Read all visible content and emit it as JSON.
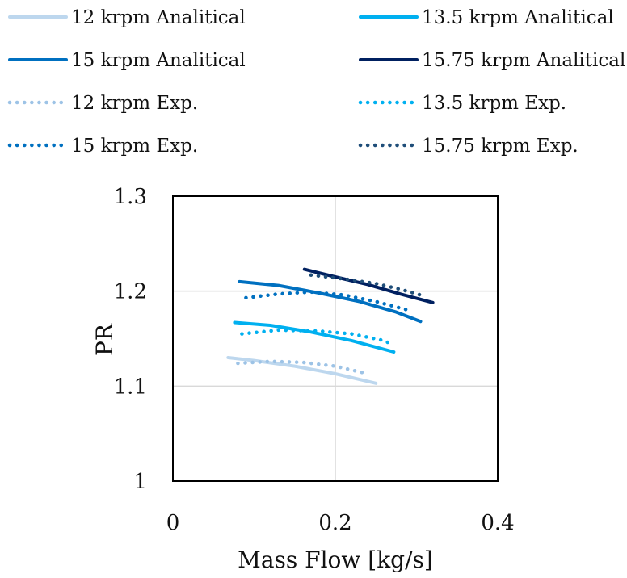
{
  "chart_data": {
    "type": "line",
    "title": "",
    "xlabel": "Mass Flow [kg/s]",
    "ylabel": "PR",
    "xlim": [
      0,
      0.4
    ],
    "ylim": [
      1,
      1.3
    ],
    "x_ticks": [
      "0",
      "0.2",
      "0.4"
    ],
    "y_ticks": [
      "1",
      "1.1",
      "1.2",
      "1.3"
    ],
    "grid": true,
    "legend_position": "top",
    "series": [
      {
        "name": "12 krpm Analitical",
        "style": "solid",
        "color": "#bdd7ee",
        "x": [
          0.068,
          0.1,
          0.15,
          0.2,
          0.25
        ],
        "y": [
          1.13,
          1.127,
          1.121,
          1.113,
          1.103
        ]
      },
      {
        "name": "13.5 krpm Analitical",
        "style": "solid",
        "color": "#00b0f0",
        "x": [
          0.076,
          0.12,
          0.17,
          0.22,
          0.272
        ],
        "y": [
          1.167,
          1.164,
          1.157,
          1.148,
          1.136
        ]
      },
      {
        "name": "15 krpm Analitical",
        "style": "solid",
        "color": "#0070c0",
        "x": [
          0.082,
          0.13,
          0.18,
          0.23,
          0.275,
          0.305
        ],
        "y": [
          1.21,
          1.206,
          1.198,
          1.189,
          1.178,
          1.168
        ]
      },
      {
        "name": "15.75 krpm Analitical",
        "style": "solid",
        "color": "#002060",
        "x": [
          0.162,
          0.2,
          0.24,
          0.28,
          0.32
        ],
        "y": [
          1.223,
          1.215,
          1.207,
          1.197,
          1.188
        ]
      },
      {
        "name": "12 krpm Exp.",
        "style": "dotted",
        "color": "#9dc3e6",
        "x": [
          0.08,
          0.12,
          0.16,
          0.2,
          0.24
        ],
        "y": [
          1.124,
          1.126,
          1.125,
          1.121,
          1.113
        ]
      },
      {
        "name": "13.5 krpm Exp.",
        "style": "dotted",
        "color": "#00b0f0",
        "x": [
          0.085,
          0.13,
          0.18,
          0.22,
          0.26,
          0.272
        ],
        "y": [
          1.155,
          1.159,
          1.158,
          1.155,
          1.148,
          1.143
        ]
      },
      {
        "name": "15 krpm Exp.",
        "style": "dotted",
        "color": "#0070c0",
        "x": [
          0.09,
          0.13,
          0.17,
          0.21,
          0.25,
          0.29
        ],
        "y": [
          1.193,
          1.197,
          1.199,
          1.196,
          1.189,
          1.18
        ]
      },
      {
        "name": "15.75 krpm Exp.",
        "style": "dotted",
        "color": "#1f4e79",
        "x": [
          0.17,
          0.21,
          0.25,
          0.28,
          0.305
        ],
        "y": [
          1.217,
          1.213,
          1.208,
          1.202,
          1.196
        ]
      }
    ]
  }
}
